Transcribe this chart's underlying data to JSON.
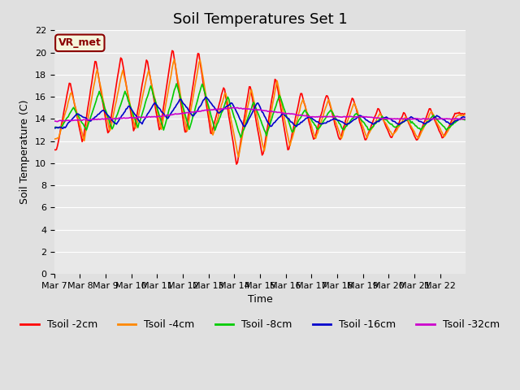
{
  "title": "Soil Temperatures Set 1",
  "xlabel": "Time",
  "ylabel": "Soil Temperature (C)",
  "ylim": [
    0,
    22
  ],
  "yticks": [
    0,
    2,
    4,
    6,
    8,
    10,
    12,
    14,
    16,
    18,
    20,
    22
  ],
  "xtick_labels": [
    "Mar 7",
    "Mar 8",
    "Mar 9",
    "Mar 10",
    "Mar 11",
    "Mar 12",
    "Mar 13",
    "Mar 14",
    "Mar 15",
    "Mar 16",
    "Mar 17",
    "Mar 18",
    "Mar 19",
    "Mar 20",
    "Mar 21",
    "Mar 22"
  ],
  "background_color": "#e0e0e0",
  "plot_bg_color": "#e8e8e8",
  "series_colors": [
    "#ff0000",
    "#ff8800",
    "#00cc00",
    "#0000cc",
    "#cc00cc"
  ],
  "series_labels": [
    "Tsoil -2cm",
    "Tsoil -4cm",
    "Tsoil -8cm",
    "Tsoil -16cm",
    "Tsoil -32cm"
  ],
  "annotation_text": "VR_met",
  "annotation_color": "#8b0000",
  "annotation_bg": "#f5f5dc",
  "title_fontsize": 13,
  "axis_fontsize": 9,
  "tick_fontsize": 8,
  "legend_fontsize": 9
}
